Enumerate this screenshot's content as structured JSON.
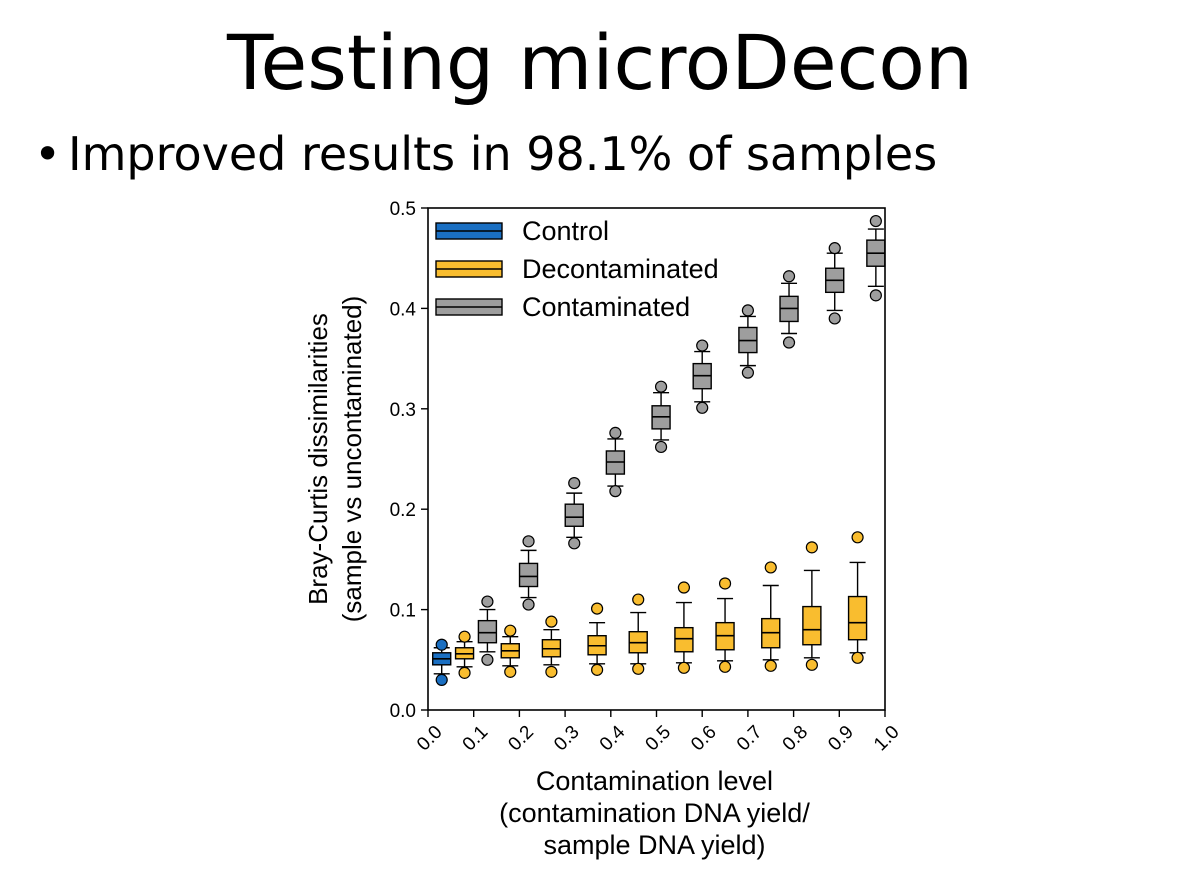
{
  "slide": {
    "title": "Testing microDecon",
    "bullet_symbol": "•",
    "bullet_text": "Improved results in 98.1% of samples"
  },
  "chart_data": {
    "type": "box",
    "ylabel_line1": "Bray-Curtis dissimilarities",
    "ylabel_line2": "(sample vs uncontaminated)",
    "xlabel_lines": [
      "Contamination level",
      "(contamination DNA yield/",
      "sample DNA yield)"
    ],
    "xlim": [
      0,
      1
    ],
    "ylim": [
      0,
      0.5
    ],
    "x_ticks": [
      "0.0",
      "0.1",
      "0.2",
      "0.3",
      "0.4",
      "0.5",
      "0.6",
      "0.7",
      "0.8",
      "0.9",
      "1.0"
    ],
    "y_ticks": [
      "0.0",
      "0.1",
      "0.2",
      "0.3",
      "0.4",
      "0.5"
    ],
    "legend_position": "top-left",
    "colors": {
      "Control": "#1a6fc2",
      "Decontaminated": "#f9bd2f",
      "Contaminated": "#9e9e9e"
    },
    "series": [
      {
        "name": "Control",
        "boxes": [
          {
            "x": 0.03,
            "whislo": 0.036,
            "q1": 0.045,
            "med": 0.051,
            "q3": 0.057,
            "whishi": 0.062,
            "outliers": [
              0.065,
              0.03
            ]
          }
        ]
      },
      {
        "name": "Decontaminated",
        "boxes": [
          {
            "x": 0.08,
            "whislo": 0.043,
            "q1": 0.051,
            "med": 0.056,
            "q3": 0.062,
            "whishi": 0.068,
            "outliers": [
              0.073,
              0.037
            ]
          },
          {
            "x": 0.18,
            "whislo": 0.044,
            "q1": 0.052,
            "med": 0.059,
            "q3": 0.066,
            "whishi": 0.073,
            "outliers": [
              0.079,
              0.038
            ]
          },
          {
            "x": 0.27,
            "whislo": 0.045,
            "q1": 0.053,
            "med": 0.061,
            "q3": 0.07,
            "whishi": 0.08,
            "outliers": [
              0.088,
              0.038
            ]
          },
          {
            "x": 0.37,
            "whislo": 0.046,
            "q1": 0.055,
            "med": 0.064,
            "q3": 0.074,
            "whishi": 0.087,
            "outliers": [
              0.101,
              0.04
            ]
          },
          {
            "x": 0.46,
            "whislo": 0.046,
            "q1": 0.057,
            "med": 0.067,
            "q3": 0.078,
            "whishi": 0.097,
            "outliers": [
              0.11,
              0.041
            ]
          },
          {
            "x": 0.56,
            "whislo": 0.047,
            "q1": 0.058,
            "med": 0.071,
            "q3": 0.082,
            "whishi": 0.107,
            "outliers": [
              0.122,
              0.042
            ]
          },
          {
            "x": 0.65,
            "whislo": 0.049,
            "q1": 0.06,
            "med": 0.074,
            "q3": 0.087,
            "whishi": 0.111,
            "outliers": [
              0.126,
              0.043
            ]
          },
          {
            "x": 0.75,
            "whislo": 0.05,
            "q1": 0.062,
            "med": 0.077,
            "q3": 0.091,
            "whishi": 0.124,
            "outliers": [
              0.142,
              0.044
            ]
          },
          {
            "x": 0.84,
            "whislo": 0.052,
            "q1": 0.065,
            "med": 0.08,
            "q3": 0.103,
            "whishi": 0.139,
            "outliers": [
              0.162,
              0.045
            ]
          },
          {
            "x": 0.94,
            "whislo": 0.057,
            "q1": 0.07,
            "med": 0.087,
            "q3": 0.113,
            "whishi": 0.147,
            "outliers": [
              0.172,
              0.052
            ]
          }
        ]
      },
      {
        "name": "Contaminated",
        "boxes": [
          {
            "x": 0.13,
            "whislo": 0.058,
            "q1": 0.067,
            "med": 0.077,
            "q3": 0.089,
            "whishi": 0.1,
            "outliers": [
              0.108,
              0.05
            ]
          },
          {
            "x": 0.22,
            "whislo": 0.112,
            "q1": 0.123,
            "med": 0.133,
            "q3": 0.146,
            "whishi": 0.159,
            "outliers": [
              0.168,
              0.105
            ]
          },
          {
            "x": 0.32,
            "whislo": 0.172,
            "q1": 0.183,
            "med": 0.192,
            "q3": 0.205,
            "whishi": 0.216,
            "outliers": [
              0.226,
              0.166
            ]
          },
          {
            "x": 0.41,
            "whislo": 0.223,
            "q1": 0.235,
            "med": 0.247,
            "q3": 0.258,
            "whishi": 0.27,
            "outliers": [
              0.276,
              0.218
            ]
          },
          {
            "x": 0.51,
            "whislo": 0.269,
            "q1": 0.28,
            "med": 0.292,
            "q3": 0.303,
            "whishi": 0.316,
            "outliers": [
              0.322,
              0.262
            ]
          },
          {
            "x": 0.6,
            "whislo": 0.307,
            "q1": 0.32,
            "med": 0.333,
            "q3": 0.345,
            "whishi": 0.357,
            "outliers": [
              0.363,
              0.301
            ]
          },
          {
            "x": 0.7,
            "whislo": 0.343,
            "q1": 0.356,
            "med": 0.368,
            "q3": 0.381,
            "whishi": 0.392,
            "outliers": [
              0.398,
              0.336
            ]
          },
          {
            "x": 0.79,
            "whislo": 0.375,
            "q1": 0.387,
            "med": 0.4,
            "q3": 0.412,
            "whishi": 0.425,
            "outliers": [
              0.432,
              0.366
            ]
          },
          {
            "x": 0.89,
            "whislo": 0.398,
            "q1": 0.416,
            "med": 0.428,
            "q3": 0.44,
            "whishi": 0.455,
            "outliers": [
              0.46,
              0.39
            ]
          },
          {
            "x": 0.98,
            "whislo": 0.422,
            "q1": 0.442,
            "med": 0.455,
            "q3": 0.468,
            "whishi": 0.479,
            "outliers": [
              0.487,
              0.413
            ]
          }
        ]
      }
    ]
  }
}
